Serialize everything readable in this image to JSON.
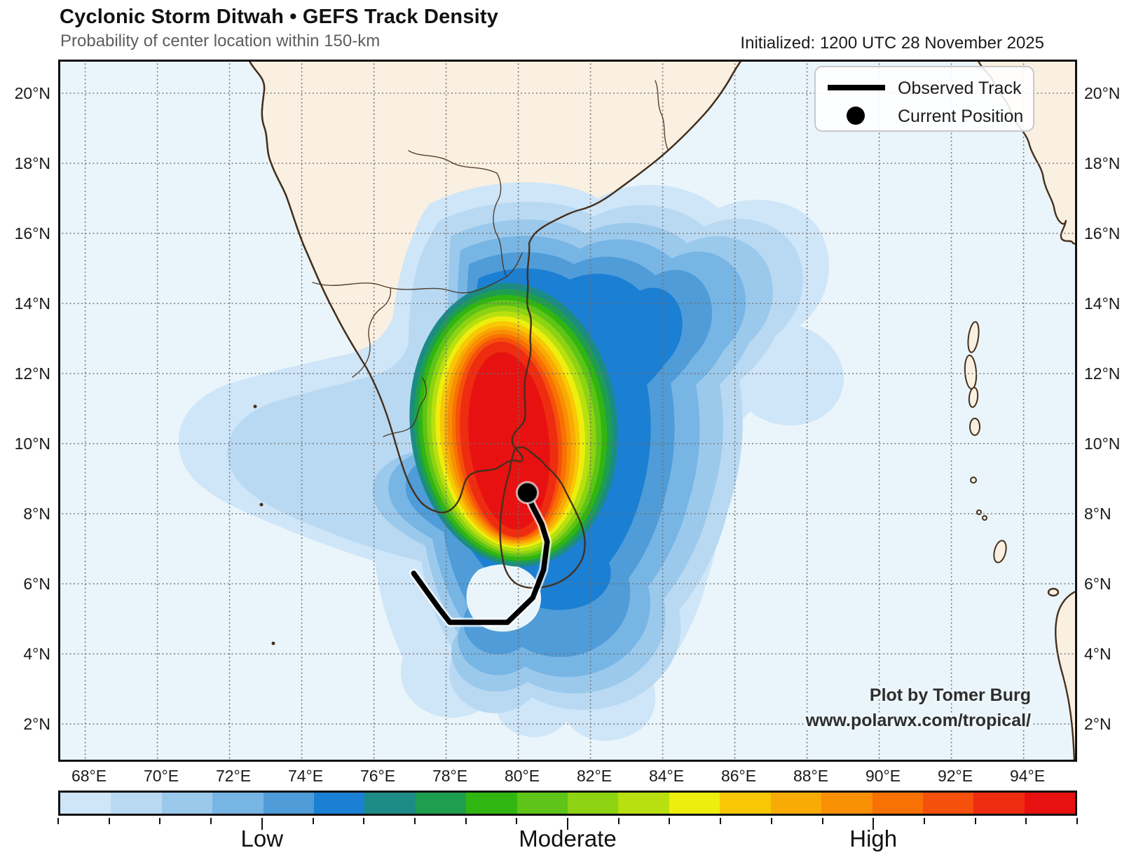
{
  "header": {
    "title": "Cyclonic Storm Ditwah • GEFS Track Density",
    "subtitle": "Probability of center location within 150-km",
    "initialized": "Initialized: 1200 UTC 28 November 2025"
  },
  "legend": {
    "observed_track": "Observed Track",
    "current_position": "Current Position"
  },
  "attribution": {
    "line1": "Plot by Tomer Burg",
    "line2": "www.polarwx.com/tropical/"
  },
  "axes": {
    "x_ticks": [
      "68°E",
      "70°E",
      "72°E",
      "74°E",
      "76°E",
      "78°E",
      "80°E",
      "82°E",
      "84°E",
      "86°E",
      "88°E",
      "90°E",
      "92°E",
      "94°E"
    ],
    "y_ticks_left": [
      "20°N",
      "18°N",
      "16°N",
      "14°N",
      "12°N",
      "10°N",
      "8°N",
      "6°N",
      "4°N",
      "2°N"
    ],
    "y_ticks_right": [
      "20°N",
      "18°N",
      "16°N",
      "14°N",
      "12°N",
      "10°N",
      "8°N",
      "6°N",
      "4°N",
      "2°N"
    ]
  },
  "colorbar": {
    "labels": [
      "Low",
      "Moderate",
      "High"
    ],
    "label_positions_pct": [
      20,
      50,
      80
    ],
    "major_tick_indices": [
      4,
      10,
      16
    ],
    "colors": [
      "#cfe5f8",
      "#b9d9f2",
      "#9bc9ec",
      "#77b5e5",
      "#4f9cd8",
      "#1b7fd4",
      "#1d8b85",
      "#1f9e4f",
      "#31b511",
      "#5ec417",
      "#8ed312",
      "#b8e010",
      "#eeee0e",
      "#f8c805",
      "#f9ab05",
      "#f98f03",
      "#f97102",
      "#f5500c",
      "#ee2c10",
      "#e81111"
    ]
  },
  "map": {
    "ocean_color": "#e9f5fb",
    "land_color": "#faf0e1",
    "coast_color": "#45301d",
    "track": {
      "points_lonlat": [
        [
          77.1,
          6.3
        ],
        [
          77.8,
          5.3
        ],
        [
          78.1,
          4.9
        ],
        [
          79.7,
          4.9
        ],
        [
          80.4,
          5.6
        ],
        [
          80.7,
          6.4
        ],
        [
          80.8,
          7.2
        ],
        [
          80.65,
          7.7
        ],
        [
          80.4,
          8.2
        ],
        [
          80.25,
          8.55
        ]
      ],
      "current_position_lonlat": [
        80.25,
        8.6
      ]
    }
  }
}
